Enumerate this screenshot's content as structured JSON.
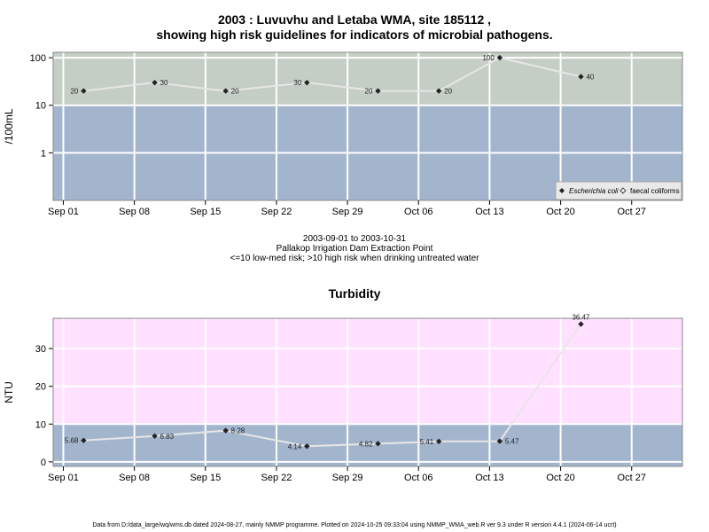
{
  "chart_data": [
    {
      "type": "line",
      "title_line1": "2003 : Luvuvhu and Letaba WMA, site 185112 ,",
      "title_line2": "showing high risk guidelines for indicators of microbial pathogens.",
      "ylabel": "/100mL",
      "yscale": "log",
      "ylim": [
        0.1,
        130
      ],
      "yticks": [
        "1",
        "10",
        "100"
      ],
      "xticks": [
        "Sep 01",
        "Sep 08",
        "Sep 15",
        "Sep 22",
        "Sep 29",
        "Oct 06",
        "Oct 13",
        "Oct 20",
        "Oct 27"
      ],
      "bands": [
        {
          "from": 0.1,
          "to": 10,
          "color": "#a3b5cd"
        },
        {
          "from": 10,
          "to": 130,
          "color": "#c4cec4"
        }
      ],
      "series": [
        {
          "name": "Escherichia coli",
          "marker": "filled-diamond",
          "x": [
            "2003-09-03",
            "2003-09-10",
            "2003-09-17",
            "2003-09-25",
            "2003-10-02",
            "2003-10-08",
            "2003-10-14",
            "2003-10-22"
          ],
          "y": [
            20,
            30,
            20,
            30,
            20,
            20,
            100,
            40
          ],
          "labels": [
            "20",
            "30",
            "20",
            "30",
            "20",
            "20",
            "100",
            "40"
          ],
          "label_side": [
            "left",
            "right",
            "right",
            "left",
            "left",
            "right",
            "left",
            "right"
          ]
        }
      ],
      "legend": {
        "placement": "bottom-right",
        "entries": [
          "Escherichia coli",
          "faecal coliforms"
        ]
      },
      "caption_lines": [
        "2003-09-01 to 2003-10-31",
        "Pallakop Irrigation Dam Extraction Point",
        "<=10 low-med risk; >10 high risk when drinking untreated water"
      ]
    },
    {
      "type": "line",
      "title": "Turbidity",
      "ylabel": "NTU",
      "ylim": [
        -1.2,
        38
      ],
      "yticks": [
        "0",
        "10",
        "20",
        "30"
      ],
      "xticks": [
        "Sep 01",
        "Sep 08",
        "Sep 15",
        "Sep 22",
        "Sep 29",
        "Oct 06",
        "Oct 13",
        "Oct 20",
        "Oct 27"
      ],
      "bands": [
        {
          "from": -1.2,
          "to": 10,
          "color": "#a3b5cd"
        },
        {
          "from": 10,
          "to": 38,
          "color": "#ffe0ff"
        }
      ],
      "series": [
        {
          "name": "Turbidity",
          "marker": "filled-diamond",
          "x": [
            "2003-09-03",
            "2003-09-10",
            "2003-09-17",
            "2003-09-25",
            "2003-10-02",
            "2003-10-08",
            "2003-10-14",
            "2003-10-22"
          ],
          "y": [
            5.68,
            6.83,
            8.28,
            4.14,
            4.82,
            5.41,
            5.47,
            36.47
          ],
          "labels": [
            "5.68",
            "6.83",
            "8.28",
            "4.14",
            "4.82",
            "5.41",
            "5.47",
            "36.47"
          ],
          "label_side": [
            "left",
            "right",
            "right",
            "left",
            "left",
            "left",
            "right",
            "top"
          ]
        }
      ]
    }
  ],
  "footer": "Data from D:/data_large/wq/wms.db dated 2024-08-27, mainly NMMP programme. Plotted on 2024-10-25 09:33:04 using NMMP_WMA_web.R ver 9.3 under R version 4.4.1 (2024-06-14 ucrt)"
}
